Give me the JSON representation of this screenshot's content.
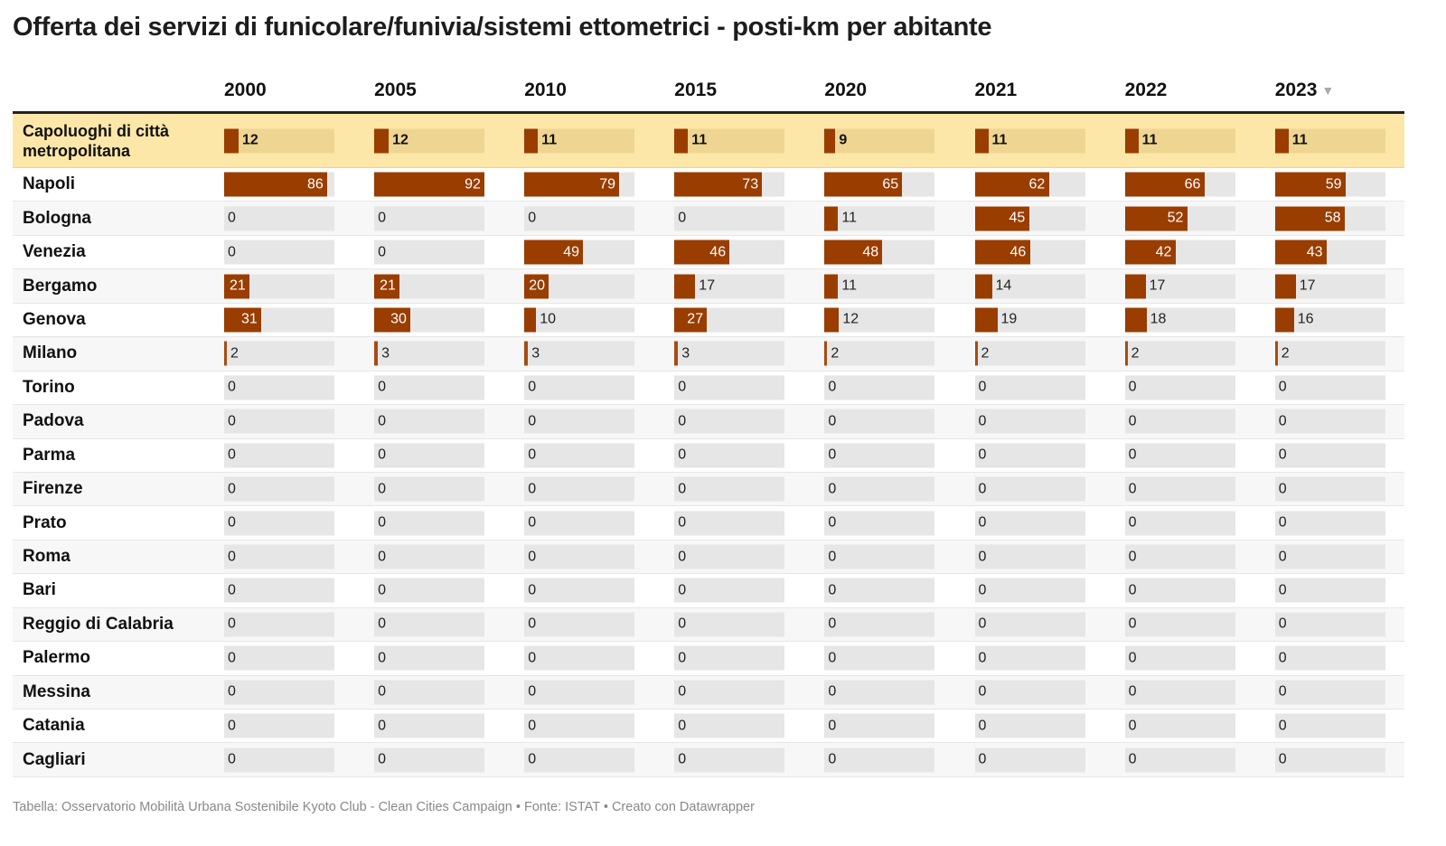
{
  "title": "Offerta dei servizi di funicolare/funivia/sistemi ettometrici - posti-km per abitante",
  "footer": "Tabella: Osservatorio Mobilità Urbana Sostenibile Kyoto Club - Clean Cities Campaign • Fonte: ISTAT • Creato con Datawrapper",
  "sort_indicator": "▼",
  "colors": {
    "bar": "#993d00",
    "highlight_row": "#fde7a8",
    "track": "#e6e6e6"
  },
  "chart_data": {
    "type": "table",
    "title": "Offerta dei servizi di funicolare/funivia/sistemi ettometrici - posti-km per abitante",
    "columns": [
      "2000",
      "2005",
      "2010",
      "2015",
      "2020",
      "2021",
      "2022",
      "2023"
    ],
    "sorted_by": "2023",
    "scale_max": 92,
    "rows": [
      {
        "label": "Capoluoghi di città metropolitana",
        "highlight": true,
        "values": [
          12,
          12,
          11,
          11,
          9,
          11,
          11,
          11
        ]
      },
      {
        "label": "Napoli",
        "values": [
          86,
          92,
          79,
          73,
          65,
          62,
          66,
          59
        ]
      },
      {
        "label": "Bologna",
        "values": [
          0,
          0,
          0,
          0,
          11,
          45,
          52,
          58
        ]
      },
      {
        "label": "Venezia",
        "values": [
          0,
          0,
          49,
          46,
          48,
          46,
          42,
          43
        ]
      },
      {
        "label": "Bergamo",
        "values": [
          21,
          21,
          20,
          17,
          11,
          14,
          17,
          17
        ]
      },
      {
        "label": "Genova",
        "values": [
          31,
          30,
          10,
          27,
          12,
          19,
          18,
          16
        ]
      },
      {
        "label": "Milano",
        "values": [
          2,
          3,
          3,
          3,
          2,
          2,
          2,
          2
        ]
      },
      {
        "label": "Torino",
        "values": [
          0,
          0,
          0,
          0,
          0,
          0,
          0,
          0
        ]
      },
      {
        "label": "Padova",
        "values": [
          0,
          0,
          0,
          0,
          0,
          0,
          0,
          0
        ]
      },
      {
        "label": "Parma",
        "values": [
          0,
          0,
          0,
          0,
          0,
          0,
          0,
          0
        ]
      },
      {
        "label": "Firenze",
        "values": [
          0,
          0,
          0,
          0,
          0,
          0,
          0,
          0
        ]
      },
      {
        "label": "Prato",
        "values": [
          0,
          0,
          0,
          0,
          0,
          0,
          0,
          0
        ]
      },
      {
        "label": "Roma",
        "values": [
          0,
          0,
          0,
          0,
          0,
          0,
          0,
          0
        ]
      },
      {
        "label": "Bari",
        "values": [
          0,
          0,
          0,
          0,
          0,
          0,
          0,
          0
        ]
      },
      {
        "label": "Reggio di Calabria",
        "values": [
          0,
          0,
          0,
          0,
          0,
          0,
          0,
          0
        ]
      },
      {
        "label": "Palermo",
        "values": [
          0,
          0,
          0,
          0,
          0,
          0,
          0,
          0
        ]
      },
      {
        "label": "Messina",
        "values": [
          0,
          0,
          0,
          0,
          0,
          0,
          0,
          0
        ]
      },
      {
        "label": "Catania",
        "values": [
          0,
          0,
          0,
          0,
          0,
          0,
          0,
          0
        ]
      },
      {
        "label": "Cagliari",
        "values": [
          0,
          0,
          0,
          0,
          0,
          0,
          0,
          0
        ]
      }
    ]
  }
}
